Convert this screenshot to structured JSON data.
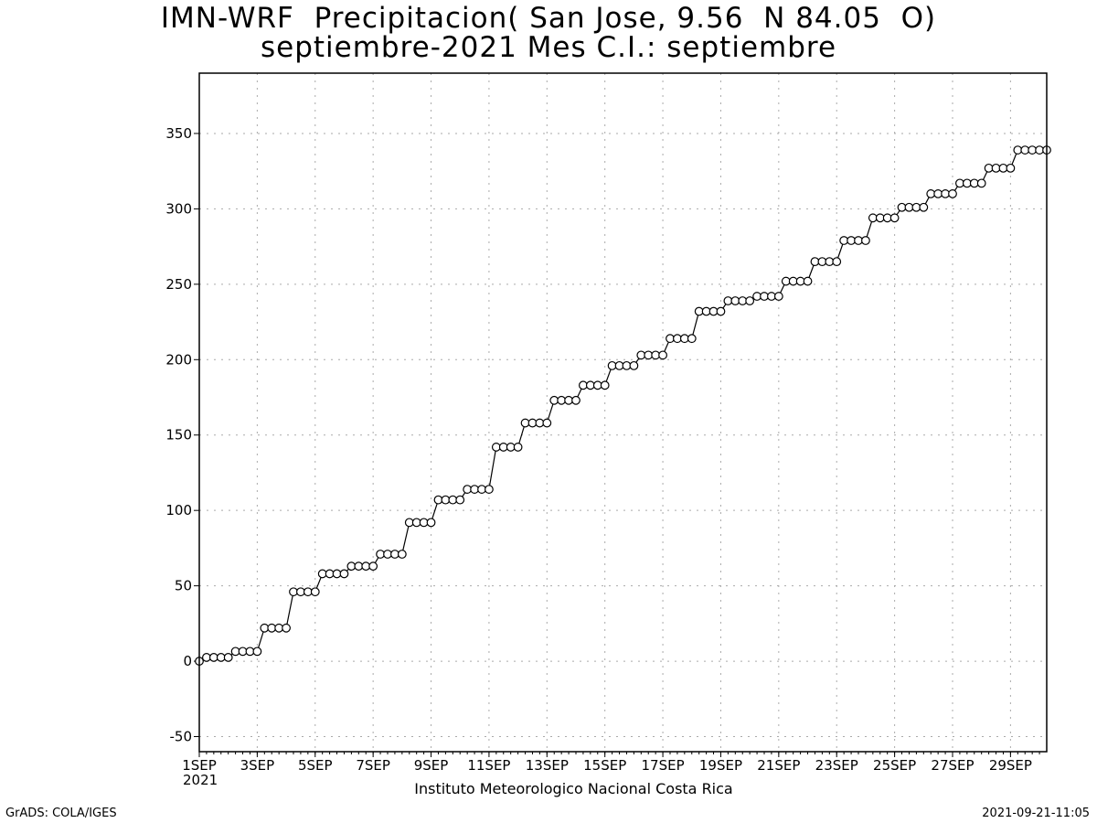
{
  "chart_data": {
    "type": "line",
    "title": "IMN-WRF  Precipitacion( San Jose, 9.56  N 84.05  O)",
    "subtitle": "septiembre-2021 Mes C.I.: septiembre",
    "xlabel": "",
    "ylabel": "",
    "xlim": [
      0,
      29.25
    ],
    "ylim": [
      -60,
      390
    ],
    "yticks": [
      -50,
      0,
      50,
      100,
      150,
      200,
      250,
      300,
      350
    ],
    "xtick_labels": [
      "1SEP",
      "3SEP",
      "5SEP",
      "7SEP",
      "9SEP",
      "11SEP",
      "13SEP",
      "15SEP",
      "17SEP",
      "19SEP",
      "21SEP",
      "23SEP",
      "25SEP",
      "27SEP",
      "29SEP"
    ],
    "x_start_label": "2021",
    "grid": true,
    "marker": "open-circle",
    "series": [
      {
        "x_unit": "days since 1SEP 00Z, 6-hourly",
        "daily_totals": [
          2.5,
          6.5,
          22,
          46,
          58,
          63,
          71,
          92,
          107,
          114,
          142,
          158,
          173,
          183,
          196,
          203,
          214,
          232,
          239,
          242,
          252,
          265,
          279,
          294,
          301,
          310,
          317,
          327,
          339,
          339
        ]
      }
    ]
  },
  "footer": {
    "institute": "Instituto Meteorologico Nacional Costa Rica",
    "credit": "GrADS: COLA/IGES",
    "timestamp": "2021-09-21-11:05"
  },
  "colors": {
    "line": "#000000",
    "grid": "#aaaaaa",
    "background": "#ffffff"
  }
}
